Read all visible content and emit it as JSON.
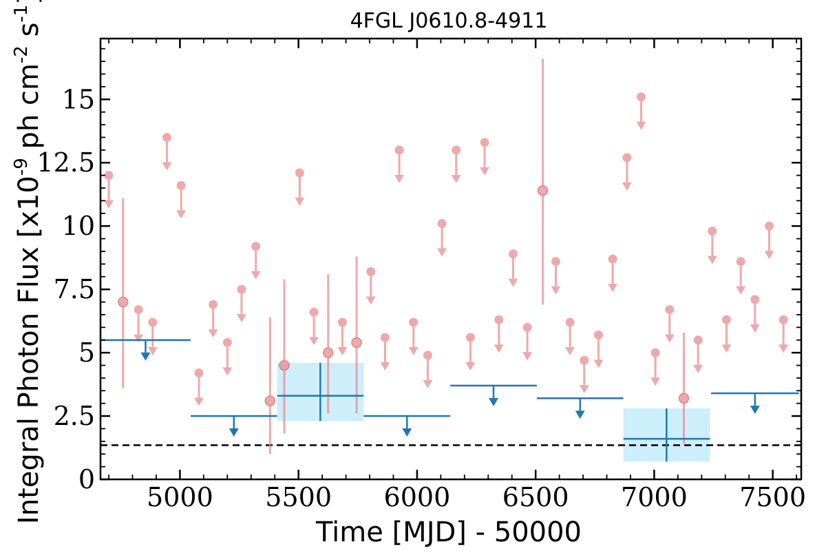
{
  "chart_data": {
    "type": "scatter",
    "title": "4FGL J0610.8-4911",
    "xlabel": "Time [MJD] - 50000",
    "ylabel": "Integral Photon Flux [x10^-9 ph cm^-2 s^-1]",
    "xlim": [
      4665,
      7620
    ],
    "ylim": [
      0,
      17.4
    ],
    "x_ticks": [
      5000,
      5500,
      6000,
      6500,
      7000,
      7500
    ],
    "x_tick_labels": [
      "5000",
      "5500",
      "6000",
      "6500",
      "7000",
      "7500"
    ],
    "y_ticks": [
      0,
      2.5,
      5,
      7.5,
      10,
      12.5,
      15
    ],
    "y_tick_labels": [
      "0",
      "2.5",
      "5",
      "7.5",
      "10",
      "12.5",
      "15"
    ],
    "colors": {
      "short_bins": "#e8888a",
      "long_bins": "#1f77b4",
      "long_bin_error_box": "#cdeefb",
      "reference_line": "#000000"
    },
    "reference_line": {
      "y": 1.35,
      "style": "dashed"
    },
    "series": [
      {
        "style": "short-bin upper limits",
        "x": [
          4700,
          4825,
          4885,
          4945,
          5005,
          5080,
          5140,
          5200,
          5260,
          5320,
          5505,
          5565,
          5685,
          5805,
          5865,
          5925,
          5985,
          6045,
          6105,
          6165,
          6225,
          6285,
          6345,
          6405,
          6465,
          6585,
          6645,
          6705,
          6765,
          6825,
          6885,
          6945,
          7005,
          7065,
          7185,
          7245,
          7305,
          7365,
          7425,
          7485,
          7545
        ],
        "upper_limit": [
          12.0,
          6.7,
          6.2,
          13.5,
          11.6,
          4.2,
          6.9,
          5.4,
          7.5,
          9.2,
          12.1,
          6.6,
          6.2,
          8.2,
          5.6,
          13.0,
          6.2,
          4.9,
          10.1,
          13.0,
          5.6,
          13.3,
          6.3,
          8.9,
          6.0,
          8.6,
          6.2,
          4.7,
          5.7,
          8.7,
          12.7,
          15.1,
          5.0,
          6.7,
          5.5,
          9.8,
          6.3,
          8.6,
          7.1,
          10.0,
          6.3
        ]
      },
      {
        "style": "short-bin detections",
        "x": [
          4760,
          5380,
          5440,
          5625,
          5745,
          6530,
          7125
        ],
        "y": [
          7.0,
          3.1,
          4.5,
          5.0,
          5.4,
          11.4,
          3.2
        ],
        "y_low": [
          3.6,
          1.0,
          1.8,
          2.6,
          2.6,
          6.9,
          1.4
        ],
        "y_high": [
          11.1,
          6.4,
          7.9,
          8.1,
          8.8,
          16.6,
          5.8
        ]
      },
      {
        "style": "long-bin upper limits",
        "x_start": [
          4665,
          5045,
          5775,
          6140,
          6505,
          7240
        ],
        "x_end": [
          5045,
          5410,
          6140,
          6505,
          6870,
          7610
        ],
        "upper_limit": [
          5.5,
          2.5,
          2.5,
          3.7,
          3.2,
          3.4
        ]
      },
      {
        "style": "long-bin detections",
        "x": [
          5592,
          7052
        ],
        "x_start": [
          5410,
          6870
        ],
        "x_end": [
          5775,
          7235
        ],
        "y": [
          3.3,
          1.6
        ],
        "y_low": [
          2.3,
          0.7
        ],
        "y_high": [
          4.6,
          2.8
        ]
      }
    ]
  }
}
